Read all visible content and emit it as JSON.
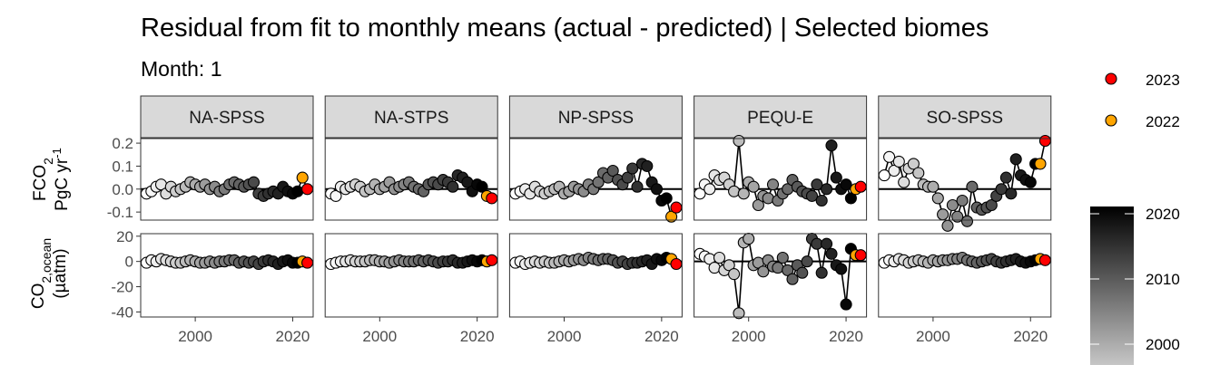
{
  "title": "Residual from fit to monthly means (actual - predicted) | Selected biomes",
  "subtitle": "Month: 1",
  "chart_data": {
    "type": "scatter",
    "title": "Residual from fit to monthly means (actual - predicted) | Selected biomes",
    "subtitle": "Month: 1",
    "facets": [
      "NA-SPSS",
      "NA-STPS",
      "NP-SPSS",
      "PEQU-E",
      "SO-SPSS"
    ],
    "rows": [
      {
        "id": "fco2",
        "ylabel_main": "FCO",
        "ylabel_sub": "2",
        "ylabel_unit_main": "PgC yr",
        "ylabel_unit_sup": "-1",
        "ylim": [
          -0.135,
          0.22
        ],
        "yticks": [
          0.2,
          0.1,
          0.0,
          -0.1
        ],
        "ytick_labels": [
          "0.2",
          "0.1",
          "0.0",
          "-0.1"
        ]
      },
      {
        "id": "co2",
        "ylabel_main": "CO",
        "ylabel_sub": "2,ocean",
        "ylabel_unit_main": "(µatm)",
        "ylim": [
          -44,
          22
        ],
        "yticks": [
          20,
          0,
          -20,
          -40
        ],
        "ytick_labels": [
          "20",
          "0",
          "-20",
          "-40"
        ]
      }
    ],
    "x": [
      1990,
      1991,
      1992,
      1993,
      1994,
      1995,
      1996,
      1997,
      1998,
      1999,
      2000,
      2001,
      2002,
      2003,
      2004,
      2005,
      2006,
      2007,
      2008,
      2009,
      2010,
      2011,
      2012,
      2013,
      2014,
      2015,
      2016,
      2017,
      2018,
      2019,
      2020,
      2021,
      2022,
      2023
    ],
    "xlim": [
      1988.8,
      2024.2
    ],
    "xticks": [
      2000,
      2020
    ],
    "xtick_labels": [
      "2000",
      "2020"
    ],
    "fill_scale": {
      "from": 1990,
      "to": 2021,
      "low_color": "#ffffff",
      "high_color": "#000000",
      "breaks": [
        2000,
        2010,
        2020
      ],
      "break_labels": [
        "2000",
        "2010",
        "2020"
      ]
    },
    "highlight": [
      {
        "year": 2023,
        "label": "2023",
        "color": "#ff0000"
      },
      {
        "year": 2022,
        "label": "2022",
        "color": "#ffa500"
      }
    ],
    "series": {
      "fco2": {
        "NA-SPSS": [
          -0.02,
          -0.01,
          0.01,
          0.02,
          -0.02,
          0.01,
          -0.01,
          0.0,
          0.01,
          0.03,
          0.02,
          0.01,
          0.02,
          0.0,
          0.01,
          -0.01,
          0.0,
          0.02,
          0.03,
          0.02,
          0.01,
          0.02,
          0.03,
          -0.02,
          -0.03,
          -0.02,
          -0.01,
          -0.02,
          0.01,
          -0.01,
          -0.02,
          -0.01,
          0.05,
          0.0
        ],
        "NA-STPS": [
          -0.02,
          -0.03,
          0.01,
          0.0,
          0.01,
          0.02,
          0.01,
          -0.01,
          0.0,
          0.02,
          0.0,
          0.01,
          0.03,
          0.0,
          0.01,
          0.02,
          0.03,
          0.01,
          0.0,
          -0.01,
          0.02,
          0.03,
          0.02,
          0.04,
          0.03,
          0.01,
          0.06,
          0.05,
          0.03,
          -0.01,
          0.02,
          0.01,
          -0.03,
          -0.04
        ],
        "NP-SPSS": [
          -0.02,
          -0.01,
          0.0,
          -0.02,
          0.01,
          -0.01,
          -0.02,
          -0.01,
          0.0,
          0.01,
          -0.02,
          -0.01,
          0.01,
          0.0,
          -0.01,
          0.02,
          0.0,
          0.03,
          0.07,
          0.05,
          0.08,
          0.04,
          0.02,
          0.05,
          0.09,
          0.01,
          0.11,
          0.1,
          0.03,
          0.0,
          -0.05,
          -0.04,
          -0.12,
          -0.08
        ],
        "PEQU-E": [
          -0.02,
          0.02,
          0.0,
          0.06,
          0.04,
          0.05,
          0.02,
          -0.01,
          0.21,
          -0.02,
          0.03,
          0.01,
          -0.07,
          -0.03,
          -0.04,
          0.02,
          -0.05,
          -0.02,
          0.0,
          0.04,
          0.01,
          -0.01,
          -0.02,
          -0.03,
          0.02,
          -0.05,
          0.0,
          0.19,
          0.05,
          0.0,
          0.02,
          -0.04,
          0.0,
          0.01
        ],
        "SO-SPSS": [
          0.06,
          0.14,
          0.08,
          0.12,
          0.03,
          0.09,
          0.11,
          0.07,
          0.02,
          0.01,
          0.01,
          -0.04,
          -0.11,
          -0.16,
          -0.07,
          -0.12,
          -0.05,
          -0.14,
          0.01,
          -0.08,
          -0.09,
          -0.08,
          -0.07,
          -0.03,
          0.0,
          0.05,
          -0.02,
          0.13,
          0.06,
          0.04,
          0.03,
          0.11,
          0.11,
          0.21
        ]
      },
      "co2": {
        "NA-SPSS": [
          -1,
          1,
          0,
          2,
          1,
          0,
          -1,
          -1,
          0,
          1,
          0,
          -1,
          -1,
          0,
          -1,
          0,
          0,
          1,
          1,
          -1,
          0,
          -1,
          0,
          -2,
          0,
          1,
          0,
          -2,
          0,
          1,
          -1,
          -1,
          0,
          -1
        ],
        "NA-STPS": [
          -2,
          -1,
          0,
          0,
          1,
          0,
          0,
          0,
          1,
          1,
          0,
          0,
          -1,
          0,
          1,
          0,
          0,
          0,
          1,
          0,
          1,
          0,
          -1,
          0,
          0,
          1,
          -1,
          -1,
          0,
          1,
          0,
          1,
          0,
          1
        ],
        "NP-SPSS": [
          -1,
          0,
          -2,
          -1,
          0,
          -1,
          0,
          -1,
          -1,
          0,
          1,
          0,
          1,
          2,
          1,
          3,
          2,
          1,
          2,
          2,
          1,
          -1,
          0,
          -2,
          -1,
          -1,
          0,
          1,
          -2,
          2,
          1,
          3,
          2,
          -2
        ],
        "PEQU-E": [
          6,
          4,
          2,
          -5,
          3,
          -7,
          -3,
          -10,
          -41,
          15,
          18,
          -3,
          -1,
          -8,
          1,
          -4,
          -5,
          3,
          -7,
          -14,
          -3,
          -9,
          0,
          18,
          14,
          -9,
          14,
          6,
          -3,
          -6,
          -34,
          10,
          5,
          5
        ],
        "SO-SPSS": [
          -1,
          1,
          0,
          2,
          1,
          -1,
          0,
          1,
          0,
          -1,
          1,
          0,
          1,
          1,
          2,
          2,
          3,
          1,
          0,
          -1,
          0,
          1,
          2,
          0,
          -1,
          0,
          1,
          2,
          0,
          -1,
          0,
          1,
          2,
          1
        ]
      }
    },
    "legend": {
      "discrete": [
        {
          "label": "2023",
          "color": "#ff0000"
        },
        {
          "label": "2022",
          "color": "#ffa500"
        }
      ],
      "colorbar_labels": [
        "2020",
        "2010",
        "2000"
      ]
    }
  }
}
